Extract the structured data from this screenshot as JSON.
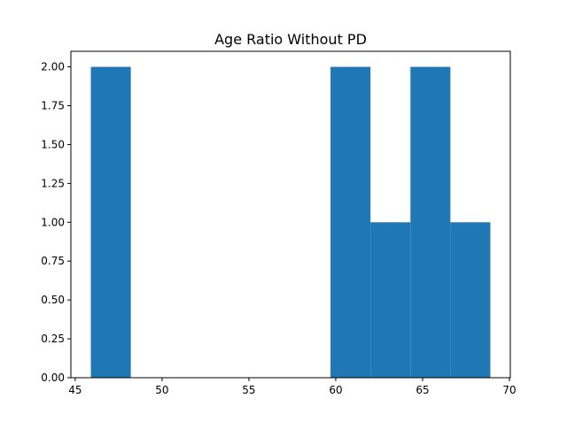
{
  "chart_data": {
    "type": "bar",
    "title": "Age Ratio Without PD",
    "xlabel": "",
    "ylabel": "",
    "bins": [
      {
        "x0": 45.9,
        "x1": 48.2,
        "count": 2
      },
      {
        "x0": 48.2,
        "x1": 50.5,
        "count": 0
      },
      {
        "x0": 50.5,
        "x1": 52.8,
        "count": 0
      },
      {
        "x0": 52.8,
        "x1": 55.1,
        "count": 0
      },
      {
        "x0": 55.1,
        "x1": 57.4,
        "count": 0
      },
      {
        "x0": 57.4,
        "x1": 59.7,
        "count": 0
      },
      {
        "x0": 59.7,
        "x1": 62.0,
        "count": 2
      },
      {
        "x0": 62.0,
        "x1": 64.3,
        "count": 1
      },
      {
        "x0": 64.3,
        "x1": 66.6,
        "count": 2
      },
      {
        "x0": 66.6,
        "x1": 68.9,
        "count": 1
      }
    ],
    "xlim": [
      44.75,
      70.05
    ],
    "ylim": [
      0,
      2.1
    ],
    "x_ticks": [
      "45",
      "50",
      "55",
      "60",
      "65",
      "70"
    ],
    "y_ticks": [
      "0.00",
      "0.25",
      "0.50",
      "0.75",
      "1.00",
      "1.25",
      "1.50",
      "1.75",
      "2.00"
    ],
    "bar_color": "#1f77b4",
    "grid": false,
    "legend": "none"
  }
}
